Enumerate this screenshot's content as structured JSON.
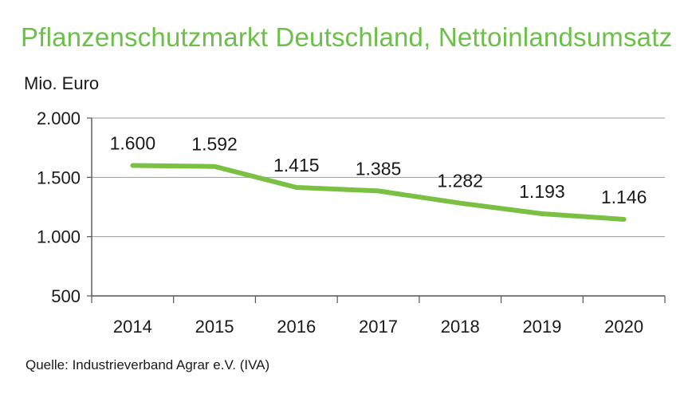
{
  "chart_data": {
    "type": "line",
    "title": "Pflanzenschutzmarkt Deutschland, Nettoinlandsumsatz",
    "ylabel": "Mio. Euro",
    "xlabel": "",
    "x": [
      "2014",
      "2015",
      "2016",
      "2017",
      "2018",
      "2019",
      "2020"
    ],
    "series": [
      {
        "values": [
          1600,
          1592,
          1415,
          1385,
          1282,
          1193,
          1146
        ],
        "labels": [
          "1.600",
          "1.592",
          "1.415",
          "1.385",
          "1.282",
          "1.193",
          "1.146"
        ]
      }
    ],
    "ylim": [
      500,
      2000
    ],
    "yticks": [
      500,
      1000,
      1500,
      2000
    ],
    "ytick_labels": [
      "500",
      "1.000",
      "1.500",
      "2.000"
    ],
    "grid": true,
    "line_color": "#7ac143",
    "title_color": "#6cc04a"
  },
  "source": "Quelle: Industrieverband Agrar e.V. (IVA)"
}
